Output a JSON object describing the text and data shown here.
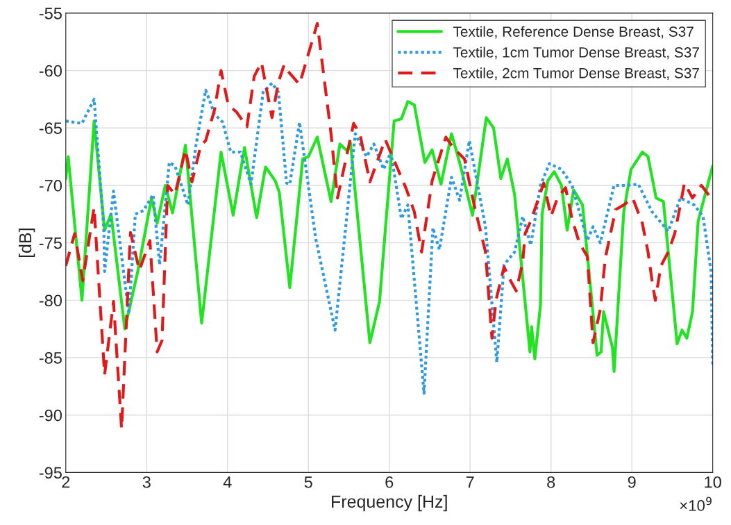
{
  "chart_data": {
    "type": "line",
    "xlabel": "Frequency [Hz]",
    "ylabel": "[dB]",
    "annotations": [
      "×10$^{9}$"
    ],
    "xlim": [
      2,
      10
    ],
    "xticks": [
      2,
      3,
      4,
      5,
      6,
      7,
      8,
      9,
      10
    ],
    "ylim": [
      -95,
      -55
    ],
    "yticks": [
      -95,
      -90,
      -85,
      -80,
      -75,
      -70,
      -65,
      -60,
      -55
    ],
    "grid": true,
    "legend": "top right",
    "series": [
      {
        "name": "Textile, Reference Dense Breast, S37",
        "color": "#22e322",
        "line_style": "solid",
        "x": [
          2.0,
          2.03,
          2.2,
          2.35,
          2.48,
          2.56,
          2.73,
          2.89,
          3.06,
          3.13,
          3.23,
          3.32,
          3.48,
          3.68,
          3.92,
          4.07,
          4.21,
          4.36,
          4.47,
          4.59,
          4.64,
          4.77,
          4.93,
          5.0,
          5.11,
          5.28,
          5.39,
          5.48,
          5.52,
          5.76,
          5.88,
          6.06,
          6.15,
          6.23,
          6.31,
          6.44,
          6.53,
          6.64,
          6.77,
          6.87,
          7.03,
          7.2,
          7.29,
          7.38,
          7.46,
          7.55,
          7.74,
          7.76,
          7.8,
          7.87,
          7.89,
          7.96,
          8.04,
          8.13,
          8.2,
          8.28,
          8.39,
          8.57,
          8.62,
          8.65,
          8.76,
          8.78,
          8.86,
          8.9,
          8.99,
          9.13,
          9.2,
          9.3,
          9.39,
          9.56,
          9.62,
          9.68,
          9.75,
          9.82,
          10.0
        ],
        "values": [
          -69.4,
          -67.5,
          -80.0,
          -64.4,
          -73.9,
          -72.5,
          -82.5,
          -77.5,
          -71.1,
          -73.3,
          -70.0,
          -72.4,
          -66.5,
          -82.0,
          -67.1,
          -72.6,
          -66.7,
          -72.8,
          -68.4,
          -69.6,
          -70.6,
          -78.9,
          -67.7,
          -67.5,
          -65.8,
          -71.4,
          -66.4,
          -67.0,
          -66.3,
          -83.7,
          -80.1,
          -64.4,
          -64.2,
          -62.7,
          -63.0,
          -68.0,
          -66.9,
          -69.9,
          -65.5,
          -68.0,
          -72.6,
          -64.1,
          -65.0,
          -69.4,
          -67.7,
          -70.8,
          -84.5,
          -82.3,
          -85.1,
          -80.4,
          -72.5,
          -69.6,
          -68.8,
          -70.0,
          -73.9,
          -70.4,
          -71.7,
          -84.8,
          -84.5,
          -81.0,
          -84.1,
          -86.2,
          -76.9,
          -72.3,
          -68.6,
          -67.1,
          -67.5,
          -71.1,
          -71.4,
          -83.8,
          -82.6,
          -83.3,
          -81.0,
          -73.1,
          -68.3
        ]
      },
      {
        "name": "Textile, 1cm Tumor Dense Breast, S37",
        "color": "#2f9ae0",
        "line_style": "dotted",
        "x": [
          2.0,
          2.2,
          2.35,
          2.47,
          2.48,
          2.59,
          2.78,
          2.86,
          2.96,
          3.08,
          3.16,
          3.28,
          3.35,
          3.51,
          3.61,
          3.73,
          3.84,
          3.94,
          4.04,
          4.16,
          4.29,
          4.44,
          4.55,
          4.63,
          4.73,
          4.77,
          4.89,
          5.09,
          5.33,
          5.58,
          5.72,
          5.81,
          5.93,
          6.02,
          6.15,
          6.23,
          6.43,
          6.54,
          6.62,
          6.77,
          6.87,
          6.99,
          7.19,
          7.33,
          7.42,
          7.55,
          7.65,
          7.75,
          7.87,
          7.98,
          8.13,
          8.26,
          8.45,
          8.52,
          8.61,
          8.78,
          8.93,
          9.08,
          9.25,
          9.45,
          9.6,
          9.77,
          9.88,
          9.98,
          10.0
        ],
        "values": [
          -64.4,
          -64.6,
          -62.5,
          -73.7,
          -77.5,
          -70.5,
          -81.2,
          -72.5,
          -72.2,
          -70.8,
          -76.9,
          -68.0,
          -68.3,
          -71.7,
          -66.5,
          -61.7,
          -63.8,
          -64.5,
          -67.1,
          -67.1,
          -69.9,
          -61.9,
          -61.1,
          -61.9,
          -69.8,
          -69.9,
          -64.5,
          -74.6,
          -82.6,
          -65.5,
          -67.5,
          -66.4,
          -68.6,
          -67.1,
          -72.9,
          -71.7,
          -88.1,
          -73.7,
          -75.6,
          -69.3,
          -71.3,
          -66.1,
          -73.6,
          -85.4,
          -76.9,
          -75.8,
          -72.7,
          -75.2,
          -70.0,
          -68.1,
          -68.6,
          -70.0,
          -74.8,
          -73.6,
          -75.0,
          -70.0,
          -70.0,
          -69.9,
          -72.3,
          -74.0,
          -71.1,
          -71.7,
          -72.7,
          -77.5,
          -85.7
        ]
      },
      {
        "name": "Textile, 2cm Tumor Dense Breast, S37",
        "color": "#e01a1a",
        "line_style": "dashed",
        "x": [
          2.0,
          2.11,
          2.21,
          2.35,
          2.48,
          2.59,
          2.69,
          2.8,
          2.91,
          3.04,
          3.13,
          3.19,
          3.26,
          3.35,
          3.48,
          3.56,
          3.67,
          3.73,
          3.84,
          3.92,
          4.01,
          4.11,
          4.24,
          4.33,
          4.42,
          4.55,
          4.63,
          4.7,
          4.74,
          4.89,
          5.11,
          5.28,
          5.36,
          5.56,
          5.64,
          5.76,
          5.95,
          6.21,
          6.31,
          6.4,
          6.53,
          6.7,
          6.79,
          6.93,
          7.05,
          7.19,
          7.27,
          7.32,
          7.42,
          7.5,
          7.57,
          7.65,
          7.68,
          7.75,
          7.91,
          8.0,
          8.08,
          8.18,
          8.26,
          8.35,
          8.45,
          8.52,
          8.61,
          8.67,
          8.73,
          8.8,
          8.9,
          9.01,
          9.13,
          9.2,
          9.25,
          9.29,
          9.36,
          9.45,
          9.53,
          9.6,
          9.65,
          9.75,
          9.86,
          10.0
        ],
        "values": [
          -77.0,
          -74.2,
          -78.3,
          -71.9,
          -86.5,
          -80.1,
          -91.2,
          -74.1,
          -77.4,
          -74.8,
          -84.5,
          -83.5,
          -70.0,
          -70.8,
          -66.9,
          -69.7,
          -66.5,
          -66.1,
          -63.4,
          -60.0,
          -63.0,
          -63.6,
          -64.9,
          -60.5,
          -59.3,
          -64.1,
          -61.0,
          -59.5,
          -60.0,
          -61.2,
          -55.9,
          -65.5,
          -71.1,
          -64.6,
          -65.6,
          -69.7,
          -66.0,
          -70.3,
          -72.3,
          -75.8,
          -69.6,
          -65.8,
          -66.7,
          -67.7,
          -71.7,
          -75.8,
          -83.3,
          -80.0,
          -77.1,
          -78.3,
          -79.2,
          -76.7,
          -74.2,
          -73.1,
          -69.8,
          -72.7,
          -71.1,
          -70.2,
          -72.9,
          -75.0,
          -76.2,
          -83.7,
          -80.8,
          -76.4,
          -74.4,
          -72.1,
          -71.7,
          -71.1,
          -73.3,
          -75.8,
          -78.3,
          -80.0,
          -77.0,
          -75.8,
          -74.2,
          -71.7,
          -69.8,
          -71.1,
          -70.0,
          -71.3
        ]
      }
    ]
  }
}
